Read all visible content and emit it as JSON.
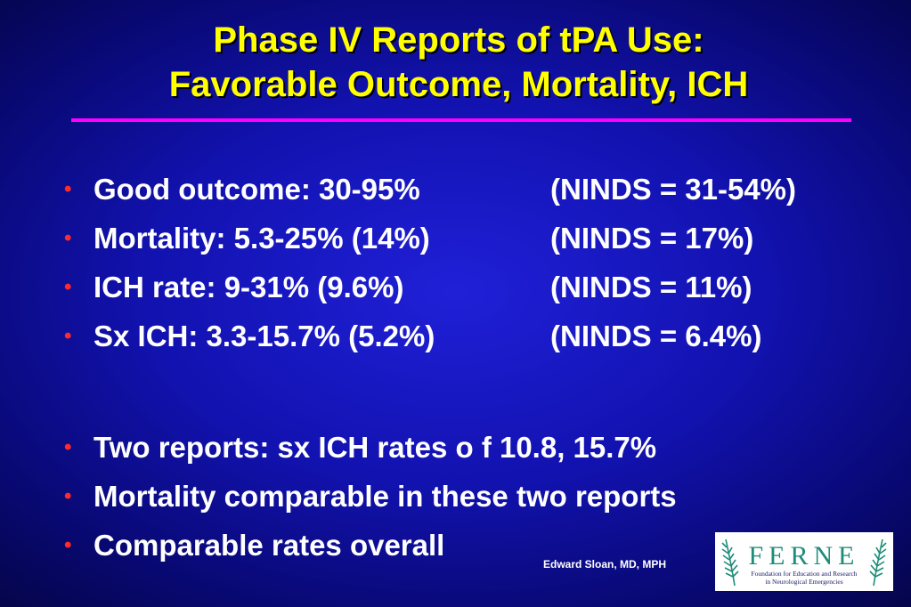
{
  "slide": {
    "title_line1": "Phase IV Reports of tPA Use:",
    "title_line2": "Favorable Outcome, Mortality, ICH",
    "bullets_top": [
      {
        "main": "Good outcome: 30-95%",
        "side": "(NINDS = 31-54%)"
      },
      {
        "main": "Mortality:  5.3-25% (14%)",
        "side": "(NINDS = 17%)"
      },
      {
        "main": "ICH rate:  9-31% (9.6%)",
        "side": "(NINDS = 11%)"
      },
      {
        "main": "Sx ICH: 3.3-15.7% (5.2%)",
        "side": "(NINDS = 6.4%)"
      }
    ],
    "bullets_bottom": [
      "Two reports:  sx ICH rates o f 10.8, 15.7%",
      "Mortality comparable in these two reports",
      "Comparable rates overall"
    ],
    "bullet_symbol": "•",
    "author": "Edward Sloan, MD, MPH"
  },
  "logo": {
    "name": "FERNE",
    "tagline_line1": "Foundation for Education and Research",
    "tagline_line2": "in Neurological Emergencies"
  },
  "colors": {
    "background": "#1414b8",
    "title": "#ffff00",
    "rule": "#ff00ff",
    "bullet": "#ff2a2a",
    "text": "#ffffff",
    "logo_teal": "#1e8c78",
    "logo_navy": "#1a1a6a"
  }
}
